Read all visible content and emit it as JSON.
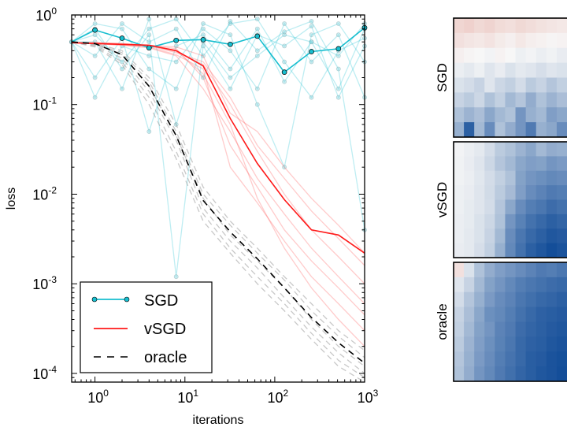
{
  "chart_data": [
    {
      "type": "line",
      "xlabel": "iterations",
      "ylabel": "loss",
      "xscale": "log",
      "yscale": "log",
      "xlim": [
        0.55,
        1000
      ],
      "ylim": [
        8e-05,
        1
      ],
      "x_ticks": [
        {
          "value": 1,
          "base": "10",
          "exp": "0"
        },
        {
          "value": 10,
          "base": "10",
          "exp": "1"
        },
        {
          "value": 100,
          "base": "10",
          "exp": "2"
        },
        {
          "value": 1000,
          "base": "10",
          "exp": "3"
        }
      ],
      "y_ticks": [
        {
          "value": 0.0001,
          "base": "10",
          "exp": "-4"
        },
        {
          "value": 0.001,
          "base": "10",
          "exp": "-3"
        },
        {
          "value": 0.01,
          "base": "10",
          "exp": "-2"
        },
        {
          "value": 0.1,
          "base": "10",
          "exp": "-1"
        },
        {
          "value": 1,
          "base": "10",
          "exp": "0"
        }
      ],
      "legend": {
        "placement": "lower-left",
        "entries": [
          "SGD",
          "vSGD",
          "oracle"
        ]
      },
      "series": [
        {
          "name": "SGD",
          "color": "#17BECF",
          "style": "solid-circle-markers",
          "x": [
            0.55,
            1,
            2,
            4,
            8,
            16,
            32,
            64,
            128,
            256,
            512,
            1000
          ],
          "y": [
            0.5,
            0.68,
            0.55,
            0.43,
            0.52,
            0.53,
            0.47,
            0.58,
            0.23,
            0.39,
            0.42,
            0.72
          ]
        },
        {
          "name": "vSGD",
          "color": "#FF1A1A",
          "style": "solid",
          "x": [
            0.55,
            1,
            2,
            4,
            8,
            16,
            32,
            64,
            128,
            256,
            512,
            1000
          ],
          "y": [
            0.49,
            0.48,
            0.47,
            0.46,
            0.4,
            0.27,
            0.07,
            0.022,
            0.0087,
            0.004,
            0.0035,
            0.0022
          ]
        },
        {
          "name": "oracle",
          "color": "#000000",
          "style": "dashed",
          "x": [
            0.55,
            1,
            2,
            4,
            8,
            16,
            32,
            64,
            128,
            256,
            512,
            1000
          ],
          "y": [
            0.5,
            0.48,
            0.36,
            0.16,
            0.045,
            0.0085,
            0.0038,
            0.0019,
            0.0009,
            0.00042,
            0.00022,
            0.00013
          ]
        }
      ],
      "individual_runs": {
        "SGD": [
          [
            0.5,
            0.5,
            0.15,
            0.9,
            0.06,
            0.5,
            0.2,
            0.35,
            0.6,
            0.5,
            0.15,
            0.7
          ],
          [
            0.5,
            0.2,
            0.55,
            0.05,
            0.45,
            0.6,
            0.25,
            0.7,
            0.18,
            0.5,
            0.35,
            0.8
          ],
          [
            0.5,
            0.6,
            0.3,
            0.7,
            0.9,
            0.35,
            0.8,
            0.9,
            0.3,
            0.12,
            0.4,
            0.55
          ],
          [
            0.5,
            0.8,
            0.7,
            0.25,
            0.15,
            0.8,
            0.6,
            0.1,
            0.02,
            0.6,
            0.8,
            0.3
          ],
          [
            0.5,
            0.35,
            0.8,
            0.5,
            0.7,
            0.2,
            0.85,
            0.4,
            0.65,
            0.85,
            0.25,
            0.004
          ],
          [
            0.5,
            0.12,
            0.45,
            0.35,
            0.3,
            0.7,
            0.4,
            0.15,
            0.8,
            0.3,
            0.6,
            0.12
          ],
          [
            0.5,
            0.7,
            0.25,
            0.6,
            0.0012,
            0.45,
            0.15,
            0.6,
            0.45,
            0.75,
            0.12,
            0.45
          ]
        ],
        "vSGD": [
          [
            0.49,
            0.48,
            0.47,
            0.46,
            0.42,
            0.2,
            0.035,
            0.012,
            0.004,
            0.0018,
            0.0009,
            0.00045
          ],
          [
            0.49,
            0.49,
            0.48,
            0.45,
            0.38,
            0.3,
            0.12,
            0.035,
            0.015,
            0.0065,
            0.0032,
            0.0016
          ],
          [
            0.49,
            0.48,
            0.46,
            0.43,
            0.35,
            0.15,
            0.05,
            0.015,
            0.006,
            0.0025,
            0.0012,
            0.0006
          ],
          [
            0.49,
            0.49,
            0.47,
            0.46,
            0.44,
            0.35,
            0.08,
            0.05,
            0.02,
            0.009,
            0.0045,
            0.0022
          ],
          [
            0.49,
            0.48,
            0.47,
            0.44,
            0.36,
            0.25,
            0.02,
            0.008,
            0.003,
            0.0012,
            0.0006,
            0.0003
          ],
          [
            0.49,
            0.48,
            0.46,
            0.45,
            0.4,
            0.22,
            0.06,
            0.009,
            0.0025,
            0.0009,
            0.0004,
            0.0002
          ],
          [
            0.49,
            0.49,
            0.48,
            0.46,
            0.39,
            0.28,
            0.1,
            0.03,
            0.01,
            0.004,
            0.002,
            0.001
          ]
        ],
        "oracle": [
          [
            0.5,
            0.45,
            0.3,
            0.12,
            0.03,
            0.006,
            0.0025,
            0.0012,
            0.0006,
            0.00028,
            0.00014,
            9e-05
          ],
          [
            0.5,
            0.47,
            0.38,
            0.18,
            0.05,
            0.01,
            0.0045,
            0.0022,
            0.0011,
            0.0005,
            0.00026,
            0.00015
          ],
          [
            0.5,
            0.46,
            0.33,
            0.14,
            0.04,
            0.007,
            0.003,
            0.0015,
            0.0007,
            0.00033,
            0.00017,
            0.0001
          ],
          [
            0.5,
            0.48,
            0.4,
            0.2,
            0.06,
            0.012,
            0.005,
            0.0025,
            0.0012,
            0.0006,
            0.0003,
            0.00018
          ],
          [
            0.5,
            0.44,
            0.28,
            0.1,
            0.025,
            0.005,
            0.0022,
            0.001,
            0.0005,
            0.00024,
            0.00012,
            8e-05
          ],
          [
            0.5,
            0.47,
            0.36,
            0.16,
            0.045,
            0.009,
            0.0035,
            0.0018,
            0.0009,
            0.0004,
            0.0002,
            0.00012
          ]
        ]
      }
    },
    {
      "type": "heatmap",
      "panels": [
        {
          "label": "SGD",
          "rows": 8,
          "cols": 11,
          "values": [
            [
              0.22,
              0.25,
              0.2,
              0.23,
              0.18,
              0.16,
              0.2,
              0.17,
              0.14,
              0.12,
              0.1
            ],
            [
              0.15,
              0.12,
              0.1,
              0.13,
              0.08,
              0.05,
              0.1,
              0.06,
              0.04,
              0.02,
              0.03
            ],
            [
              0.05,
              0.02,
              0.0,
              -0.02,
              0.03,
              0.0,
              -0.04,
              -0.02,
              -0.05,
              -0.03,
              -0.06
            ],
            [
              -0.05,
              -0.08,
              -0.04,
              -0.1,
              -0.06,
              -0.12,
              -0.08,
              -0.1,
              -0.14,
              -0.1,
              -0.12
            ],
            [
              -0.12,
              -0.15,
              -0.2,
              -0.1,
              -0.18,
              -0.22,
              -0.15,
              -0.25,
              -0.2,
              -0.28,
              -0.22
            ],
            [
              -0.2,
              -0.25,
              -0.18,
              -0.3,
              -0.22,
              -0.35,
              -0.28,
              -0.42,
              -0.3,
              -0.38,
              -0.32
            ],
            [
              -0.3,
              -0.38,
              -0.32,
              -0.45,
              -0.35,
              -0.3,
              -0.55,
              -0.4,
              -0.35,
              -0.5,
              -0.45
            ],
            [
              -0.4,
              -0.85,
              -0.35,
              -0.6,
              -0.3,
              -0.42,
              -0.55,
              -0.7,
              -0.4,
              -0.45,
              -0.6
            ]
          ]
        },
        {
          "label": "vSGD",
          "rows": 8,
          "cols": 11,
          "values": [
            [
              -0.02,
              -0.05,
              -0.08,
              -0.15,
              -0.25,
              -0.3,
              -0.38,
              -0.45,
              -0.35,
              -0.42,
              -0.4
            ],
            [
              -0.03,
              -0.06,
              -0.1,
              -0.18,
              -0.28,
              -0.35,
              -0.45,
              -0.5,
              -0.48,
              -0.55,
              -0.52
            ],
            [
              -0.03,
              -0.05,
              -0.09,
              -0.15,
              -0.22,
              -0.3,
              -0.48,
              -0.55,
              -0.58,
              -0.62,
              -0.6
            ],
            [
              -0.04,
              -0.06,
              -0.1,
              -0.16,
              -0.25,
              -0.34,
              -0.5,
              -0.6,
              -0.65,
              -0.7,
              -0.68
            ],
            [
              -0.04,
              -0.07,
              -0.1,
              -0.15,
              -0.28,
              -0.45,
              -0.6,
              -0.68,
              -0.72,
              -0.78,
              -0.75
            ],
            [
              -0.05,
              -0.07,
              -0.12,
              -0.18,
              -0.3,
              -0.55,
              -0.66,
              -0.75,
              -0.8,
              -0.85,
              -0.82
            ],
            [
              -0.05,
              -0.08,
              -0.12,
              -0.2,
              -0.35,
              -0.6,
              -0.72,
              -0.8,
              -0.85,
              -0.9,
              -0.88
            ],
            [
              -0.06,
              -0.08,
              -0.14,
              -0.22,
              -0.4,
              -0.62,
              -0.75,
              -0.85,
              -0.9,
              -0.95,
              -0.92
            ]
          ]
        },
        {
          "label": "oracle",
          "rows": 8,
          "cols": 11,
          "values": [
            [
              0.15,
              -0.12,
              -0.3,
              -0.42,
              -0.5,
              -0.55,
              -0.6,
              -0.65,
              -0.7,
              -0.68,
              -0.72
            ],
            [
              -0.1,
              -0.2,
              -0.35,
              -0.48,
              -0.55,
              -0.62,
              -0.68,
              -0.72,
              -0.75,
              -0.78,
              -0.8
            ],
            [
              -0.15,
              -0.28,
              -0.4,
              -0.52,
              -0.6,
              -0.65,
              -0.72,
              -0.76,
              -0.8,
              -0.82,
              -0.85
            ],
            [
              -0.2,
              -0.32,
              -0.45,
              -0.58,
              -0.62,
              -0.68,
              -0.75,
              -0.8,
              -0.84,
              -0.86,
              -0.88
            ],
            [
              -0.22,
              -0.35,
              -0.48,
              -0.55,
              -0.65,
              -0.7,
              -0.78,
              -0.82,
              -0.85,
              -0.88,
              -0.9
            ],
            [
              -0.25,
              -0.38,
              -0.5,
              -0.58,
              -0.66,
              -0.72,
              -0.8,
              -0.84,
              -0.86,
              -0.9,
              -0.92
            ],
            [
              -0.28,
              -0.4,
              -0.52,
              -0.6,
              -0.68,
              -0.74,
              -0.8,
              -0.86,
              -0.88,
              -0.92,
              -0.94
            ],
            [
              -0.3,
              -0.42,
              -0.55,
              -0.62,
              -0.7,
              -0.76,
              -0.82,
              -0.86,
              -0.9,
              -0.92,
              -0.95
            ]
          ]
        }
      ]
    }
  ]
}
